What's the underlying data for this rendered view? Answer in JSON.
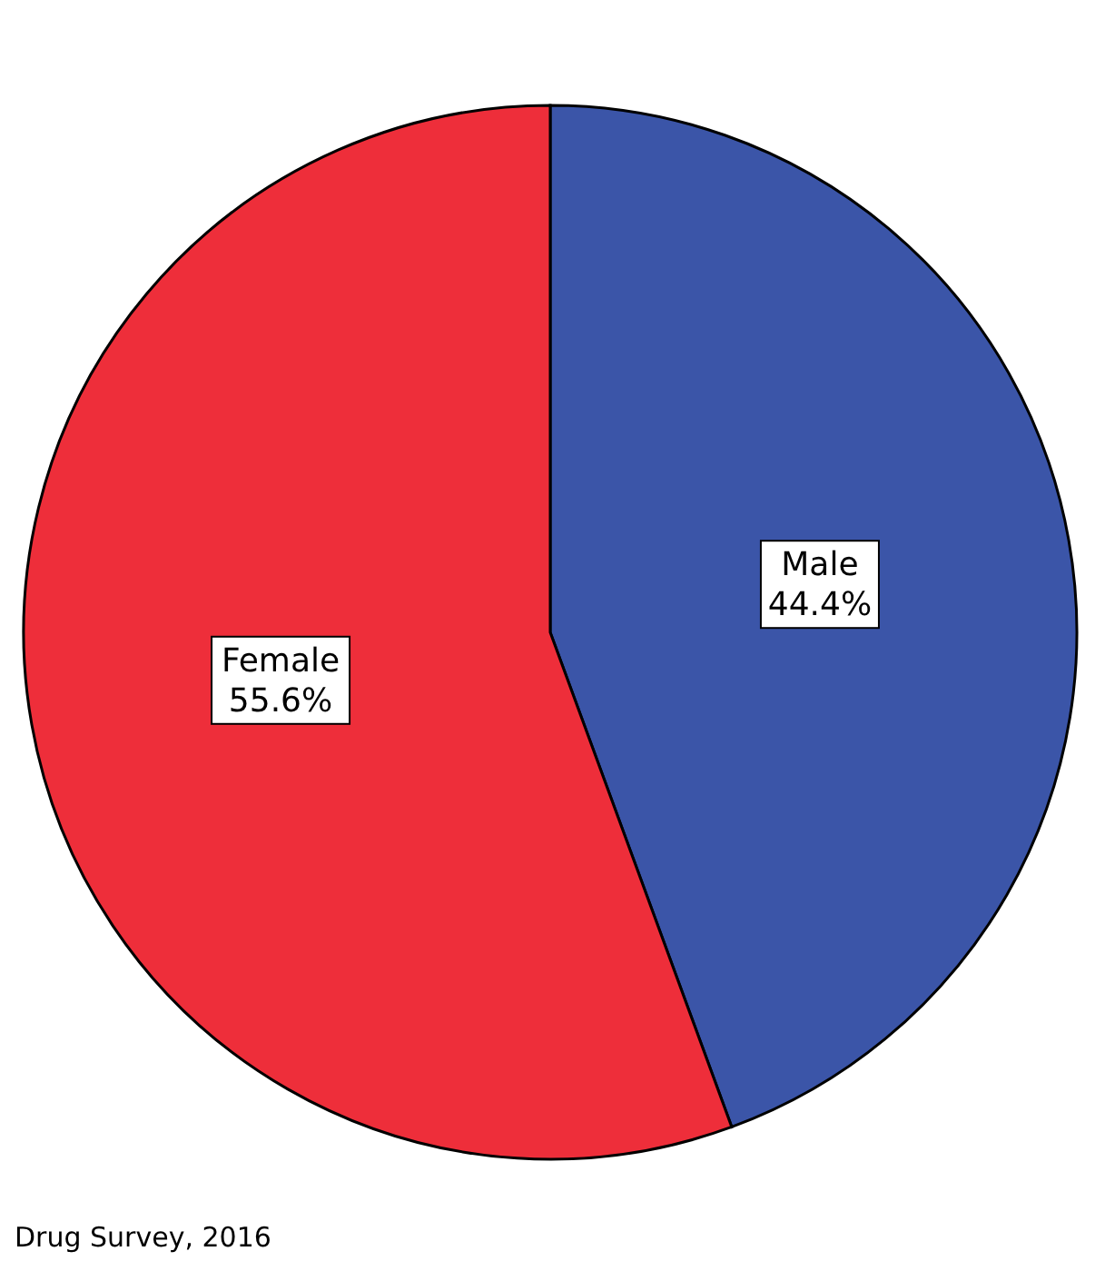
{
  "chart_data": {
    "type": "pie",
    "categories": [
      "Male",
      "Female"
    ],
    "values": [
      44.4,
      55.6
    ],
    "colors": [
      "#3b55a8",
      "#ee2e3a"
    ],
    "value_labels": [
      "44.4%",
      "55.6%"
    ],
    "annotations": [
      "Drug Survey, 2016"
    ]
  }
}
